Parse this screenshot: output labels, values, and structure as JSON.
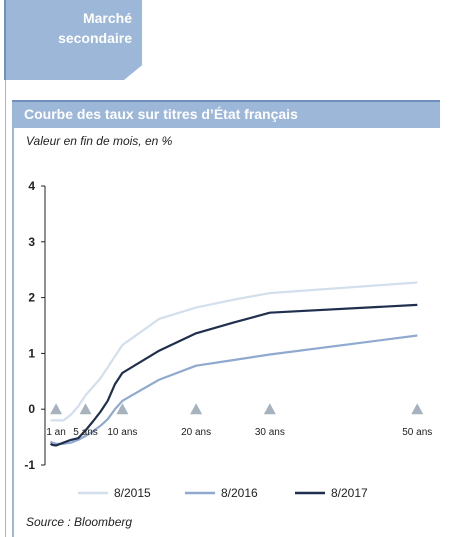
{
  "section_tab": {
    "line1": "Marché",
    "line2": "secondaire"
  },
  "panel": {
    "title": "Courbe des taux sur titres d’État français",
    "subtitle": "Valeur en fin de mois, en %",
    "source": "Source : Bloomberg"
  },
  "colors": {
    "panel_blue": "#9db7d8",
    "dark_blue": "#6f8fbd",
    "series_2015": "#d3dfed",
    "series_2016": "#8fa9cf",
    "series_2017": "#1f2f4d",
    "marker": "#a7b2bf"
  },
  "chart_data": {
    "type": "line",
    "ylim": [
      -1,
      4
    ],
    "yticks": [
      -1,
      0,
      1,
      2,
      3,
      4
    ],
    "xlim": [
      -0.5,
      52
    ],
    "x_ticks": [
      {
        "x": 1,
        "label": "1 an"
      },
      {
        "x": 5,
        "label": "5 ans"
      },
      {
        "x": 10,
        "label": "10 ans"
      },
      {
        "x": 20,
        "label": "20 ans"
      },
      {
        "x": 30,
        "label": "30 ans"
      },
      {
        "x": 50,
        "label": "50 ans"
      }
    ],
    "legend_position": "bottom",
    "series": [
      {
        "name": "8/2015",
        "color": "#d3dfed",
        "x": [
          0.25,
          0.5,
          1,
          2,
          3,
          4,
          5,
          6,
          7,
          8,
          9,
          10,
          15,
          20,
          25,
          30,
          50
        ],
        "y": [
          -0.2,
          -0.2,
          -0.2,
          -0.2,
          -0.1,
          0.05,
          0.25,
          0.4,
          0.55,
          0.75,
          0.95,
          1.15,
          1.62,
          1.82,
          1.96,
          2.08,
          2.27
        ]
      },
      {
        "name": "8/2016",
        "color": "#8fa9cf",
        "x": [
          0.25,
          0.5,
          1,
          2,
          3,
          4,
          5,
          6,
          7,
          8,
          9,
          10,
          15,
          20,
          25,
          30,
          50
        ],
        "y": [
          -0.58,
          -0.6,
          -0.62,
          -0.62,
          -0.6,
          -0.55,
          -0.48,
          -0.4,
          -0.3,
          -0.18,
          0.0,
          0.15,
          0.53,
          0.78,
          0.88,
          0.98,
          1.32
        ]
      },
      {
        "name": "8/2017",
        "color": "#1f2f4d",
        "x": [
          0.25,
          0.5,
          1,
          2,
          3,
          4,
          5,
          6,
          7,
          8,
          9,
          10,
          15,
          20,
          25,
          30,
          50
        ],
        "y": [
          -0.62,
          -0.64,
          -0.65,
          -0.6,
          -0.55,
          -0.52,
          -0.38,
          -0.22,
          -0.05,
          0.15,
          0.45,
          0.65,
          1.05,
          1.36,
          1.55,
          1.73,
          1.87
        ]
      }
    ]
  }
}
